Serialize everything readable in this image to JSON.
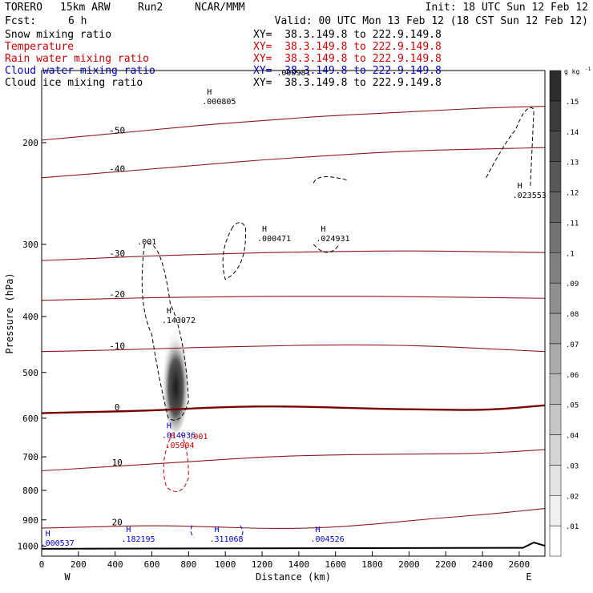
{
  "header": {
    "model": "TORERO",
    "resolution": "15km ARW",
    "run": "Run2",
    "org": "NCAR/MMM",
    "init": "Init: 18 UTC Sun 12 Feb 12",
    "fcst_label": "Fcst:",
    "fcst_value": "6 h",
    "valid": "Valid: 00 UTC Mon 13 Feb 12 (18 CST Sun 12 Feb 12)"
  },
  "fields": [
    {
      "name": "Snow mixing ratio",
      "xy": "XY=  38.3.149.8 to 222.9.149.8",
      "color": "#000000"
    },
    {
      "name": "Temperature",
      "xy": "XY=  38.3.149.8 to 222.9.149.8",
      "color": "#cc0000"
    },
    {
      "name": "Rain water mixing ratio",
      "xy": "XY=  38.3.149.8 to 222.9.149.8",
      "color": "#cc0000"
    },
    {
      "name": "Cloud water mixing ratio",
      "xy": "XY=  38.3.149.8 to 222.9.149.8",
      "color": "#0000cc"
    },
    {
      "name": "Cloud ice mixing ratio",
      "xy": "XY=  38.3.149.8 to 222.9.149.8",
      "color": "#000000"
    }
  ],
  "chart_data": {
    "type": "contour cross-section",
    "xlabel": "Distance (km)",
    "ylabel": "Pressure (hPa)",
    "x_ticks": [
      "0",
      "200",
      "400",
      "600",
      "800",
      "1000",
      "1200",
      "1400",
      "1600",
      "1800",
      "2000",
      "2200",
      "2400",
      "2600"
    ],
    "y_ticks": [
      "200",
      "300",
      "400",
      "500",
      "600",
      "700",
      "800",
      "900",
      "1000"
    ],
    "xlim": [
      0,
      2740
    ],
    "ylim_hpa": [
      1040,
      150
    ],
    "x_end_labels": {
      "left": "W",
      "right": "E"
    },
    "colorbar": {
      "unit": "g kg",
      "unit_sup": "-1",
      "ticks": [
        ".01",
        ".02",
        ".03",
        ".04",
        ".05",
        ".06",
        ".07",
        ".08",
        ".09",
        ".1",
        ".11",
        ".12",
        ".13",
        ".14",
        ".15"
      ]
    },
    "temperature_contours": [
      {
        "value": -50,
        "label": "-50",
        "pressure": [
          198,
          194,
          190,
          186,
          183,
          180,
          178,
          176,
          174,
          173
        ],
        "color": "#8b1a1a"
      },
      {
        "value": -40,
        "label": "-40",
        "pressure": [
          230,
          226,
          222,
          218,
          214,
          211,
          208,
          206,
          205,
          204
        ],
        "color": "#8b1a1a"
      },
      {
        "value": -30,
        "label": "-30",
        "pressure": [
          320,
          317,
          314,
          312,
          310,
          309,
          308,
          308,
          309,
          310
        ],
        "color": "#8b1a1a"
      },
      {
        "value": -20,
        "label": "-20",
        "pressure": [
          375,
          373,
          371,
          370,
          369,
          369,
          369,
          370,
          371,
          372
        ],
        "color": "#8b1a1a"
      },
      {
        "value": -10,
        "label": "-10",
        "pressure": [
          460,
          458,
          455,
          452,
          450,
          448,
          448,
          450,
          455,
          460
        ],
        "color": "#8b1a1a"
      },
      {
        "value": 0,
        "label": "0",
        "pressure": [
          588,
          585,
          582,
          575,
          572,
          574,
          578,
          580,
          581,
          570
        ],
        "color": "#7a0000",
        "bold": true
      },
      {
        "value": 10,
        "label": "10",
        "pressure": [
          740,
          730,
          720,
          710,
          700,
          695,
          693,
          692,
          690,
          680
        ],
        "color": "#8b1a1a"
      },
      {
        "value": 20,
        "label": "20",
        "pressure": [
          930,
          925,
          920,
          925,
          932,
          930,
          915,
          895,
          880,
          860
        ],
        "color": "#8b1a1a"
      }
    ],
    "extrema_labels": [
      {
        "text": "H",
        "value": ".000805",
        "x": 900,
        "p": 165,
        "color": "#000000"
      },
      {
        "text": "H",
        "value": ".000471",
        "x": 1200,
        "p": 285,
        "color": "#000000"
      },
      {
        "text": "H",
        "value": ".024931",
        "x": 1520,
        "p": 285,
        "color": "#000000"
      },
      {
        "text": "H",
        "value": ".023553",
        "x": 2590,
        "p": 240,
        "color": "#000000"
      },
      {
        "text": "H",
        "value": ".143072",
        "x": 680,
        "p": 395,
        "color": "#000000"
      },
      {
        "text": "H",
        "value": ".014936",
        "x": 680,
        "p": 625,
        "color": "#0000cc"
      },
      {
        "text": "H",
        "value": ".05904",
        "x": 700,
        "p": 650,
        "color": "#cc0000"
      },
      {
        "text": "H",
        "value": ".000537",
        "x": 20,
        "p": 960,
        "color": "#0000cc"
      },
      {
        "text": "H",
        "value": ".182195",
        "x": 460,
        "p": 945,
        "color": "#0000cc"
      },
      {
        "text": "H",
        "value": ".311068",
        "x": 940,
        "p": 945,
        "color": "#0000cc"
      },
      {
        "text": "H",
        "value": ".004526",
        "x": 1490,
        "p": 945,
        "color": "#0000cc"
      }
    ],
    "misc_labels": [
      {
        "text": ".001",
        "x": 520,
        "p": 300,
        "color": "#000000"
      },
      {
        "text": ".001",
        "x": 800,
        "p": 652,
        "color": "#cc0000"
      },
      {
        "text": ".000981",
        "x": 1280,
        "p": 153,
        "color": "#000000"
      }
    ]
  }
}
